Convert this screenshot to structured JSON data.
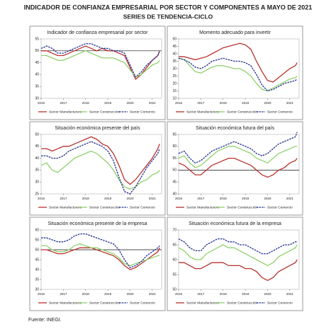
{
  "title": "INDICADOR DE CONFIANZA EMPRESARIAL POR SECTOR Y COMPONENTES A MAYO DE 2021",
  "subtitle": "SERIES DE TENDENCIA-CICLO",
  "source": "Fuente: INEGI.",
  "chart_data": [
    {
      "type": "line",
      "title": "Indicador de confianza empresarial por sector",
      "x": [
        2016,
        2016.25,
        2016.5,
        2016.75,
        2017,
        2017.25,
        2017.5,
        2017.75,
        2018,
        2018.25,
        2018.5,
        2018.75,
        2019,
        2019.25,
        2019.5,
        2019.75,
        2020,
        2020.25,
        2020.5,
        2020.75,
        2021,
        2021.25,
        2021.33
      ],
      "xlim": [
        2016,
        2021.42
      ],
      "xticks": [
        2016,
        2017,
        2018,
        2019,
        2020,
        2021
      ],
      "ylim": [
        30,
        55
      ],
      "yticks": [
        30,
        35,
        40,
        45,
        50,
        55
      ],
      "refline": 50,
      "series": [
        {
          "name": "Sector Manufacturero",
          "color": "#b7312c",
          "values": [
            50,
            50,
            49,
            48,
            48,
            49,
            50,
            51,
            52,
            51,
            50,
            51,
            50,
            50,
            49,
            48,
            43,
            38,
            40,
            43,
            46,
            48,
            50
          ]
        },
        {
          "name": "Sector Construcción",
          "color": "#8fd16c",
          "values": [
            48,
            48,
            47,
            46,
            46,
            47,
            48,
            49,
            50,
            49,
            48,
            47,
            47,
            47,
            46,
            45,
            42,
            39,
            40,
            42,
            44,
            45,
            46
          ]
        },
        {
          "name": "Sector Comercio",
          "color": "#1f2d8f",
          "values": [
            51,
            52,
            51,
            49,
            49,
            50,
            51,
            52,
            53,
            53,
            52,
            51,
            51,
            50,
            50,
            49,
            44,
            39,
            41,
            44,
            46,
            48,
            50
          ]
        }
      ]
    },
    {
      "type": "line",
      "title": "Momento adecuado para invertir",
      "x": [
        2016,
        2016.25,
        2016.5,
        2016.75,
        2017,
        2017.25,
        2017.5,
        2017.75,
        2018,
        2018.25,
        2018.5,
        2018.75,
        2019,
        2019.25,
        2019.5,
        2019.75,
        2020,
        2020.25,
        2020.5,
        2020.75,
        2021,
        2021.25,
        2021.33
      ],
      "xlim": [
        2016,
        2021.42
      ],
      "xticks": [
        2016,
        2017,
        2018,
        2019,
        2020,
        2021
      ],
      "ylim": [
        10,
        50
      ],
      "yticks": [
        10,
        15,
        20,
        25,
        30,
        35,
        40,
        45,
        50
      ],
      "series": [
        {
          "name": "Sector Manufacturero",
          "color": "#b7312c",
          "values": [
            38,
            38,
            37,
            36,
            37,
            38,
            40,
            42,
            44,
            45,
            46,
            47,
            46,
            43,
            35,
            28,
            22,
            21,
            24,
            27,
            30,
            32,
            34
          ]
        },
        {
          "name": "Sector Construcción",
          "color": "#8fd16c",
          "values": [
            37,
            36,
            32,
            28,
            27,
            29,
            31,
            32,
            32,
            31,
            30,
            30,
            28,
            25,
            20,
            16,
            15,
            17,
            19,
            21,
            23,
            24,
            25
          ]
        },
        {
          "name": "Sector Comercio",
          "color": "#1f2d8f",
          "values": [
            37,
            36,
            34,
            31,
            30,
            32,
            35,
            36,
            37,
            36,
            35,
            35,
            34,
            32,
            26,
            19,
            15,
            16,
            18,
            20,
            21,
            22,
            23
          ]
        }
      ]
    },
    {
      "type": "line",
      "title": "Situación económica presente del país",
      "x": [
        2016,
        2016.25,
        2016.5,
        2016.75,
        2017,
        2017.25,
        2017.5,
        2017.75,
        2018,
        2018.25,
        2018.5,
        2018.75,
        2019,
        2019.25,
        2019.5,
        2019.75,
        2020,
        2020.25,
        2020.5,
        2020.75,
        2021,
        2021.25,
        2021.33
      ],
      "xlim": [
        2016,
        2021.42
      ],
      "xticks": [
        2016,
        2017,
        2018,
        2019,
        2020,
        2021
      ],
      "ylim": [
        25,
        50
      ],
      "yticks": [
        25,
        30,
        35,
        40,
        45,
        50
      ],
      "series": [
        {
          "name": "Sector Manufacturero",
          "color": "#b7312c",
          "values": [
            44,
            44,
            43,
            44,
            45,
            45,
            46,
            47,
            48,
            49,
            48,
            46,
            45,
            42,
            37,
            31,
            29,
            31,
            34,
            37,
            40,
            44,
            46
          ]
        },
        {
          "name": "Sector Construcción",
          "color": "#8fd16c",
          "values": [
            37,
            38,
            35,
            34,
            36,
            38,
            40,
            41,
            42,
            43,
            42,
            40,
            38,
            35,
            31,
            28,
            27,
            28,
            30,
            31,
            33,
            34,
            35
          ]
        },
        {
          "name": "Sector Comercio",
          "color": "#1f2d8f",
          "values": [
            41,
            41,
            40,
            40,
            41,
            43,
            44,
            45,
            46,
            47,
            46,
            45,
            43,
            39,
            32,
            26,
            25,
            28,
            32,
            36,
            39,
            42,
            44
          ]
        }
      ]
    },
    {
      "type": "line",
      "title": "Situación económica futura del país",
      "x": [
        2016,
        2016.25,
        2016.5,
        2016.75,
        2017,
        2017.25,
        2017.5,
        2017.75,
        2018,
        2018.25,
        2018.5,
        2018.75,
        2019,
        2019.25,
        2019.5,
        2019.75,
        2020,
        2020.25,
        2020.5,
        2020.75,
        2021,
        2021.25,
        2021.33
      ],
      "xlim": [
        2016,
        2021.42
      ],
      "xticks": [
        2016,
        2017,
        2018,
        2019,
        2020,
        2021
      ],
      "ylim": [
        40,
        65
      ],
      "yticks": [
        40,
        45,
        50,
        55,
        60,
        65
      ],
      "refline": 50,
      "series": [
        {
          "name": "Sector Manufacturero",
          "color": "#b7312c",
          "values": [
            53,
            52,
            50,
            48,
            48,
            50,
            52,
            53,
            54,
            55,
            55,
            54,
            53,
            52,
            50,
            48,
            47,
            48,
            50,
            51,
            53,
            54,
            55
          ]
        },
        {
          "name": "Sector Construcción",
          "color": "#8fd16c",
          "values": [
            55,
            56,
            53,
            51,
            52,
            54,
            56,
            58,
            59,
            60,
            60,
            59,
            58,
            57,
            55,
            54,
            53,
            55,
            57,
            58,
            59,
            60,
            60
          ]
        },
        {
          "name": "Sector Comercio",
          "color": "#1f2d8f",
          "values": [
            57,
            58,
            55,
            53,
            54,
            56,
            58,
            59,
            60,
            61,
            62,
            61,
            60,
            59,
            57,
            56,
            57,
            59,
            61,
            62,
            63,
            64,
            66
          ]
        }
      ]
    },
    {
      "type": "line",
      "title": "Situación económica presente de la empresa",
      "x": [
        2016,
        2016.25,
        2016.5,
        2016.75,
        2017,
        2017.25,
        2017.5,
        2017.75,
        2018,
        2018.25,
        2018.5,
        2018.75,
        2019,
        2019.25,
        2019.5,
        2019.75,
        2020,
        2020.25,
        2020.5,
        2020.75,
        2021,
        2021.25,
        2021.33
      ],
      "xlim": [
        2016,
        2021.42
      ],
      "xticks": [
        2016,
        2017,
        2018,
        2019,
        2020,
        2021
      ],
      "ylim": [
        30,
        60
      ],
      "yticks": [
        30,
        35,
        40,
        45,
        50,
        55,
        60
      ],
      "refline": 50,
      "series": [
        {
          "name": "Sector Manufacturero",
          "color": "#b7312c",
          "values": [
            50,
            50,
            49,
            48,
            48,
            49,
            50,
            51,
            51,
            51,
            50,
            49,
            48,
            47,
            45,
            42,
            40,
            41,
            43,
            45,
            47,
            49,
            51
          ]
        },
        {
          "name": "Sector Construcción",
          "color": "#8fd16c",
          "values": [
            52,
            52,
            50,
            49,
            49,
            50,
            52,
            53,
            52,
            51,
            51,
            50,
            49,
            48,
            46,
            43,
            42,
            43,
            44,
            45,
            46,
            47,
            47
          ]
        },
        {
          "name": "Sector Comercio",
          "color": "#1f2d8f",
          "values": [
            56,
            56,
            55,
            54,
            54,
            55,
            57,
            58,
            58,
            57,
            56,
            55,
            54,
            53,
            50,
            45,
            41,
            42,
            44,
            47,
            49,
            51,
            52
          ]
        }
      ]
    },
    {
      "type": "line",
      "title": "Situación económica futura de la empresa",
      "x": [
        2016,
        2016.25,
        2016.5,
        2016.75,
        2017,
        2017.25,
        2017.5,
        2017.75,
        2018,
        2018.25,
        2018.5,
        2018.75,
        2019,
        2019.25,
        2019.5,
        2019.75,
        2020,
        2020.25,
        2020.5,
        2020.75,
        2021,
        2021.25,
        2021.33
      ],
      "xlim": [
        2016,
        2021.42
      ],
      "xticks": [
        2016,
        2017,
        2018,
        2019,
        2020,
        2021
      ],
      "ylim": [
        50,
        70
      ],
      "yticks": [
        50,
        55,
        60,
        65,
        70
      ],
      "series": [
        {
          "name": "Sector Manufacturero",
          "color": "#b7312c",
          "values": [
            59,
            59,
            58,
            57,
            57,
            58,
            59,
            59,
            59,
            58,
            58,
            58,
            57,
            57,
            56,
            54,
            53,
            54,
            56,
            57,
            58,
            59,
            60
          ]
        },
        {
          "name": "Sector Construcción",
          "color": "#8fd16c",
          "values": [
            64,
            63,
            61,
            60,
            60,
            62,
            63,
            64,
            65,
            64,
            64,
            63,
            62,
            61,
            60,
            59,
            58,
            59,
            61,
            62,
            63,
            64,
            65
          ]
        },
        {
          "name": "Sector Comercio",
          "color": "#1f2d8f",
          "values": [
            67,
            66,
            64,
            63,
            63,
            65,
            66,
            67,
            67,
            66,
            66,
            65,
            65,
            64,
            63,
            62,
            62,
            63,
            64,
            65,
            65,
            66,
            66
          ]
        }
      ]
    }
  ]
}
